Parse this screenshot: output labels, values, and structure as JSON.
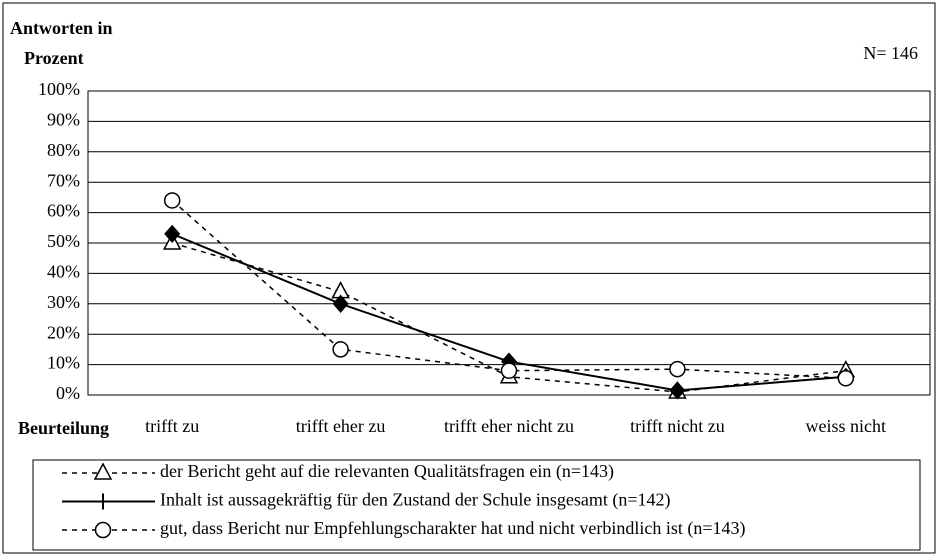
{
  "chart_data": {
    "type": "line",
    "y_label": [
      "Antworten in",
      "Prozent"
    ],
    "x_label": "Beurteilung",
    "annotation": "N= 146",
    "categories": [
      "trifft zu",
      "trifft eher zu",
      "trifft eher nicht zu",
      "trifft nicht zu",
      "weiss nicht"
    ],
    "series": [
      {
        "name": "der Bericht geht auf die relevanten Qualitätsfragen ein (n=143)",
        "color": "#000000",
        "dash": true,
        "marker": "triangle",
        "values": [
          50,
          34,
          6,
          1,
          8
        ]
      },
      {
        "name": "Inhalt ist aussagekräftig für den Zustand der Schule insgesamt (n=142)",
        "color": "#000000",
        "dash": false,
        "marker": "diamond",
        "values": [
          53,
          30,
          11,
          1.5,
          6
        ]
      },
      {
        "name": "gut, dass Bericht nur Empfehlungscharakter hat und nicht verbindlich ist (n=143)",
        "color": "#000000",
        "dash": true,
        "marker": "circle",
        "values": [
          64,
          15,
          8,
          8.5,
          5.5
        ]
      }
    ],
    "ylim": [
      0,
      100
    ],
    "yticks": [
      {
        "value": 0,
        "label": "0%"
      },
      {
        "value": 10,
        "label": "10%"
      },
      {
        "value": 20,
        "label": "20%"
      },
      {
        "value": 30,
        "label": "30%"
      },
      {
        "value": 40,
        "label": "40%"
      },
      {
        "value": 50,
        "label": "50%"
      },
      {
        "value": 60,
        "label": "60%"
      },
      {
        "value": 70,
        "label": "70%"
      },
      {
        "value": 80,
        "label": "80%"
      },
      {
        "value": 90,
        "label": "90%"
      },
      {
        "value": 100,
        "label": "100%"
      }
    ],
    "grid": true
  }
}
